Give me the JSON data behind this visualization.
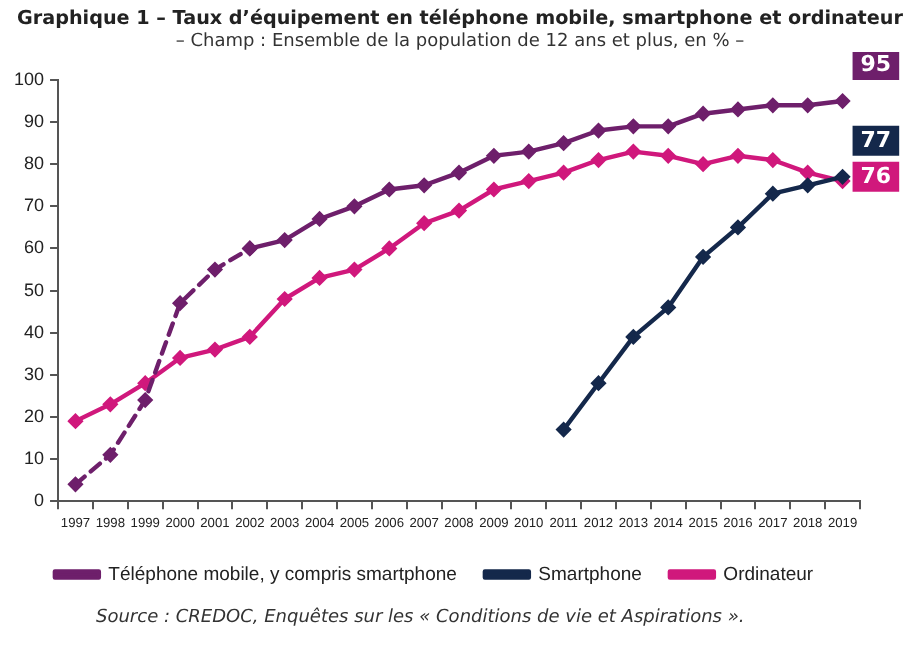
{
  "chart_data": {
    "type": "line",
    "title": "Graphique 1 – Taux d’équipement en téléphone mobile, smartphone et ordinateur",
    "subtitle": "– Champ : Ensemble de la population de 12 ans et plus, en % –",
    "categories": [
      "1997",
      "1998",
      "1999",
      "2000",
      "2001",
      "2002",
      "2003",
      "2004",
      "2005",
      "2006",
      "2007",
      "2008",
      "2009",
      "2010",
      "2011",
      "2012",
      "2013",
      "2014",
      "2015",
      "2016",
      "2017",
      "2018",
      "2019"
    ],
    "series": [
      {
        "color": "#6e1f6b",
        "line_style": "dashed",
        "values": [
          4,
          11,
          24,
          47,
          55,
          60,
          null,
          null,
          null,
          null,
          null,
          null,
          null,
          null,
          null,
          null,
          null,
          null,
          null,
          null,
          null,
          null,
          null
        ]
      },
      {
        "name": "Téléphone mobile, y compris smartphone",
        "color": "#6e1f6b",
        "line_style": "solid",
        "values": [
          null,
          null,
          null,
          null,
          null,
          60,
          62,
          67,
          70,
          74,
          75,
          78,
          82,
          83,
          85,
          88,
          89,
          89,
          92,
          93,
          94,
          94,
          95
        ],
        "value_labels": [
          null,
          null,
          null,
          null,
          null,
          null,
          null,
          null,
          null,
          null,
          null,
          null,
          null,
          null,
          null,
          null,
          null,
          null,
          null,
          null,
          null,
          null,
          "95"
        ]
      },
      {
        "name": "Smartphone",
        "color": "#14284b",
        "line_style": "solid",
        "values": [
          null,
          null,
          null,
          null,
          null,
          null,
          null,
          null,
          null,
          null,
          null,
          null,
          null,
          null,
          17,
          28,
          39,
          46,
          58,
          65,
          73,
          75,
          77
        ],
        "value_labels": [
          null,
          null,
          null,
          null,
          null,
          null,
          null,
          null,
          null,
          null,
          null,
          null,
          null,
          null,
          null,
          null,
          null,
          null,
          null,
          null,
          null,
          null,
          "77"
        ]
      },
      {
        "name": "Ordinateur",
        "color": "#d0187c",
        "line_style": "solid",
        "values": [
          19,
          23,
          28,
          34,
          36,
          39,
          48,
          53,
          55,
          60,
          66,
          69,
          74,
          76,
          78,
          81,
          83,
          82,
          80,
          82,
          81,
          78,
          76
        ],
        "value_labels": [
          null,
          null,
          null,
          null,
          null,
          null,
          null,
          null,
          null,
          null,
          null,
          null,
          null,
          null,
          null,
          null,
          null,
          null,
          null,
          null,
          null,
          null,
          "76"
        ]
      }
    ],
    "ylim": [
      0,
      100
    ],
    "yticks": [
      0,
      10,
      20,
      30,
      40,
      50,
      60,
      70,
      80,
      90,
      100
    ],
    "grid": false,
    "legend": "bottom",
    "marker": "diamond",
    "annotations": [
      "Source : CREDOC, Enquêtes sur les « Conditions de vie et Aspirations »."
    ]
  }
}
